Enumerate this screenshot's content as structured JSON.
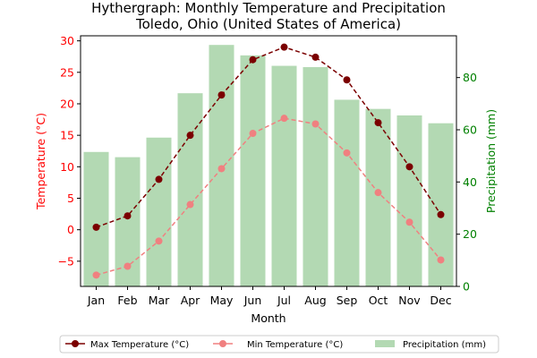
{
  "chart_data": {
    "type": "bar+line",
    "title_line1": "Hythergraph: Monthly Temperature and Precipitation",
    "title_line2": "Toledo, Ohio (United States of America)",
    "xlabel": "Month",
    "ylabel_left": "Temperature (°C)",
    "ylabel_right": "Precipitation (mm)",
    "categories": [
      "Jan",
      "Feb",
      "Mar",
      "Apr",
      "May",
      "Jun",
      "Jul",
      "Aug",
      "Sep",
      "Oct",
      "Nov",
      "Dec"
    ],
    "ylim_left": [
      -9.0,
      30.8
    ],
    "ylim_right": [
      0,
      96
    ],
    "yticks_left": [
      -5,
      0,
      5,
      10,
      15,
      20,
      25,
      30
    ],
    "yticks_right": [
      0,
      20,
      40,
      60,
      80
    ],
    "series": [
      {
        "name": "Max Temperature (°C)",
        "kind": "line",
        "axis": "left",
        "color": "#7b0000",
        "values": [
          0.4,
          2.2,
          8.0,
          15.0,
          21.4,
          27.0,
          29.0,
          27.4,
          23.8,
          17.0,
          10.0,
          2.4
        ]
      },
      {
        "name": "Min Temperature (°C)",
        "kind": "line",
        "axis": "left",
        "color": "#f08080",
        "values": [
          -7.2,
          -5.8,
          -1.8,
          4.0,
          9.7,
          15.3,
          17.7,
          16.8,
          12.2,
          5.9,
          1.2,
          -4.8
        ]
      },
      {
        "name": "Precipitation (mm)",
        "kind": "bar",
        "axis": "right",
        "color": "#b3d9b3",
        "values": [
          51.5,
          49.5,
          57.0,
          74.0,
          92.5,
          88.5,
          84.5,
          84.0,
          71.5,
          68.0,
          65.5,
          62.5
        ]
      }
    ],
    "colors": {
      "left_axis": "#ff0000",
      "right_axis": "#008000"
    },
    "legend_position": "bottom"
  }
}
